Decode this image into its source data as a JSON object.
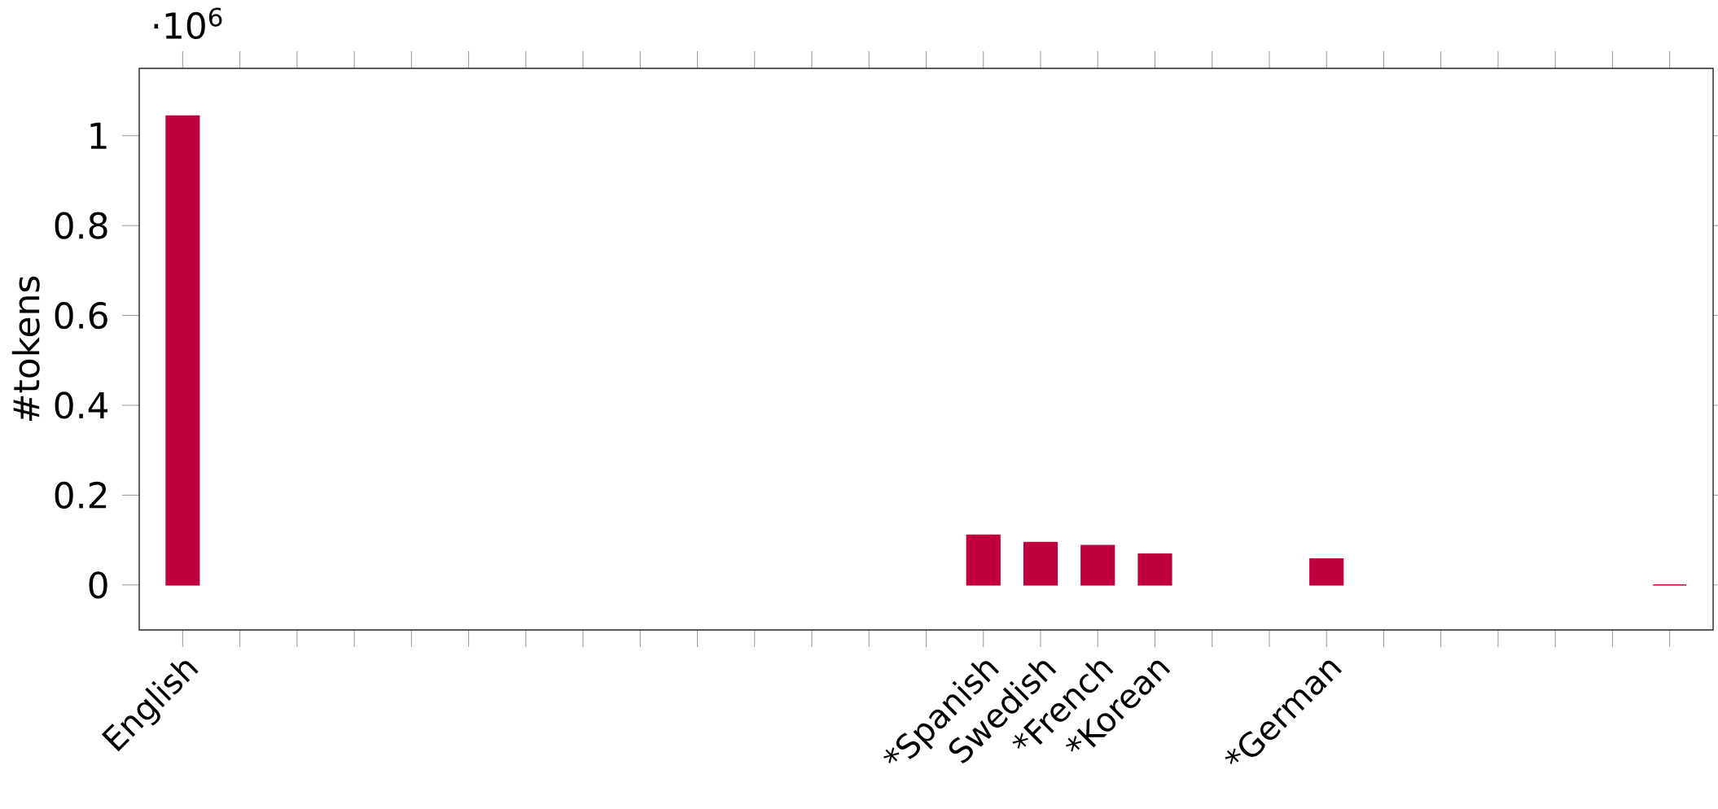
{
  "chart_data": {
    "type": "bar",
    "ylabel": "#tokens",
    "categories": [
      "English",
      null,
      null,
      null,
      null,
      null,
      null,
      null,
      null,
      null,
      null,
      null,
      null,
      null,
      "*Spanish",
      "Swedish",
      "*French",
      "*Korean",
      null,
      null,
      "*German",
      null,
      null,
      null,
      null,
      null,
      null
    ],
    "values": [
      1.044,
      null,
      null,
      null,
      null,
      null,
      null,
      null,
      null,
      null,
      null,
      null,
      null,
      null,
      0.111,
      0.095,
      0.088,
      0.069,
      null,
      null,
      0.058,
      null,
      null,
      null,
      null,
      null,
      0
    ],
    "color": "#c0003c",
    "ylim": [
      -0.1,
      1.15
    ],
    "yticks": [
      0,
      0.2,
      0.4,
      0.6,
      0.8,
      1
    ],
    "annotations": [
      "·10$^{6}$"
    ],
    "grid": false
  }
}
